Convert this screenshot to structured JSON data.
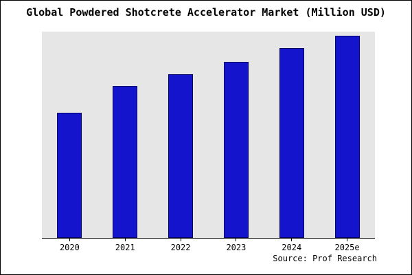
{
  "header": {
    "title": "Global Powdered Shotcrete Accelerator Market (Million USD)"
  },
  "footer": {
    "source": "Source: Prof Research"
  },
  "chart_data": {
    "type": "bar",
    "title": "Global Powdered Shotcrete Accelerator Market (Million USD)",
    "categories": [
      "2020",
      "2021",
      "2022",
      "2023",
      "2024",
      "2025e"
    ],
    "values": [
      62,
      75,
      81,
      87,
      94,
      100
    ],
    "xlabel": "",
    "ylabel": "",
    "ylim": [
      0,
      102
    ],
    "grid": false,
    "legend": false,
    "y_axis_labels_visible": false,
    "bar_color": "#1414CC",
    "bar_edge_color": "#000066",
    "plot_bg": "#E6E6E6",
    "frame_border_color": "#000000",
    "background_color": "#FFFFFF"
  }
}
